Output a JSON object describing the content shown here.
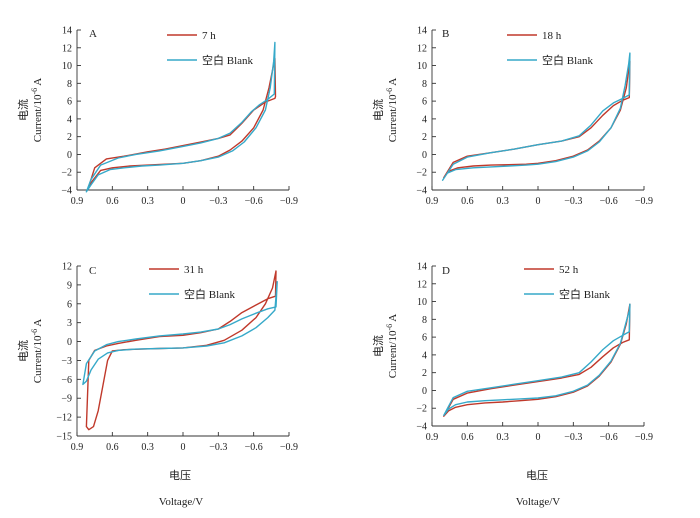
{
  "colors": {
    "sample": "#c0392b",
    "blank": "#36a9c9"
  },
  "x_label_cn": "电压",
  "x_label_en": "Voltage/V",
  "y_label_cn": "电流",
  "y_label_en": "Current/10",
  "y_label_exp": "-6",
  "y_label_unit": " A",
  "chart_data": [
    {
      "type": "line",
      "panel": "A",
      "xlim": [
        0.9,
        -0.9
      ],
      "ylim": [
        -4,
        14
      ],
      "x_ticks": [
        0.9,
        0.6,
        0.3,
        0,
        -0.3,
        -0.6,
        -0.9
      ],
      "x_tick_labels": [
        "0.9",
        "0.6",
        "0.3",
        "0",
        "−0.3",
        "−0.6",
        "−0.9"
      ],
      "y_ticks": [
        -4,
        -2,
        0,
        2,
        4,
        6,
        8,
        10,
        12,
        14
      ],
      "y_tick_labels": [
        "−4",
        "−2",
        "0",
        "2",
        "4",
        "6",
        "8",
        "10",
        "12",
        "14"
      ],
      "series": [
        {
          "name": "7 h",
          "color_key": "sample",
          "x": [
            0.8,
            0.77,
            0.7,
            0.6,
            0.45,
            0.3,
            0.15,
            0,
            -0.15,
            -0.3,
            -0.4,
            -0.5,
            -0.6,
            -0.68,
            -0.73,
            -0.78,
            -0.785,
            -0.78,
            -0.7,
            -0.6,
            -0.5,
            -0.4,
            -0.3,
            -0.15,
            0,
            0.15,
            0.3,
            0.5,
            0.65,
            0.75,
            0.8
          ],
          "y": [
            -3.6,
            -3.0,
            -1.8,
            -1.5,
            -1.3,
            -1.2,
            -1.1,
            -1.0,
            -0.7,
            -0.2,
            0.5,
            1.5,
            3.0,
            5.0,
            7.5,
            10.8,
            6.5,
            6.3,
            5.9,
            5.0,
            3.5,
            2.2,
            1.8,
            1.4,
            1.0,
            0.6,
            0.3,
            -0.2,
            -0.5,
            -1.5,
            -3.6
          ]
        },
        {
          "name": "空白 Blank",
          "color_key": "blank",
          "x": [
            0.82,
            0.78,
            0.72,
            0.62,
            0.5,
            0.35,
            0.2,
            0,
            -0.15,
            -0.3,
            -0.42,
            -0.52,
            -0.62,
            -0.7,
            -0.74,
            -0.77,
            -0.78,
            -0.775,
            -0.72,
            -0.65,
            -0.58,
            -0.5,
            -0.4,
            -0.3,
            -0.15,
            0,
            0.2,
            0.4,
            0.55,
            0.7,
            0.78,
            0.82
          ],
          "y": [
            -4.2,
            -3.4,
            -2.3,
            -1.7,
            -1.5,
            -1.3,
            -1.2,
            -1.0,
            -0.7,
            -0.3,
            0.4,
            1.4,
            3.0,
            5.0,
            7.5,
            10.5,
            12.6,
            6.8,
            6.2,
            5.6,
            4.8,
            3.6,
            2.4,
            1.8,
            1.3,
            0.9,
            0.4,
            0.0,
            -0.4,
            -1.2,
            -2.8,
            -4.2
          ]
        }
      ],
      "legend": [
        "7 h",
        "空白 Blank"
      ]
    },
    {
      "type": "line",
      "panel": "B",
      "xlim": [
        0.9,
        -0.9
      ],
      "ylim": [
        -4,
        14
      ],
      "x_ticks": [
        0.9,
        0.6,
        0.3,
        0,
        -0.3,
        -0.6,
        -0.9
      ],
      "x_tick_labels": [
        "0.9",
        "0.6",
        "0.3",
        "0",
        "−0.3",
        "−0.6",
        "−0.9"
      ],
      "y_ticks": [
        -4,
        -2,
        0,
        2,
        4,
        6,
        8,
        10,
        12,
        14
      ],
      "y_tick_labels": [
        "−4",
        "−2",
        "0",
        "2",
        "4",
        "6",
        "8",
        "10",
        "12",
        "14"
      ],
      "series": [
        {
          "name": "18 h",
          "color_key": "sample",
          "x": [
            0.8,
            0.76,
            0.68,
            0.55,
            0.4,
            0.25,
            0.1,
            0,
            -0.15,
            -0.3,
            -0.42,
            -0.52,
            -0.62,
            -0.7,
            -0.75,
            -0.78,
            -0.775,
            -0.72,
            -0.64,
            -0.55,
            -0.45,
            -0.35,
            -0.2,
            0,
            0.2,
            0.4,
            0.6,
            0.72,
            0.8
          ],
          "y": [
            -2.6,
            -1.9,
            -1.5,
            -1.3,
            -1.2,
            -1.15,
            -1.1,
            -1.0,
            -0.7,
            -0.2,
            0.5,
            1.5,
            3.0,
            5.0,
            7.5,
            10.5,
            6.4,
            6.1,
            5.5,
            4.4,
            3.0,
            2.0,
            1.5,
            1.1,
            0.6,
            0.2,
            -0.2,
            -0.9,
            -2.6
          ]
        },
        {
          "name": "空白 Blank",
          "color_key": "blank",
          "x": [
            0.81,
            0.77,
            0.7,
            0.55,
            0.4,
            0.25,
            0.1,
            0,
            -0.15,
            -0.3,
            -0.42,
            -0.52,
            -0.62,
            -0.7,
            -0.74,
            -0.77,
            -0.78,
            -0.775,
            -0.72,
            -0.64,
            -0.55,
            -0.45,
            -0.35,
            -0.2,
            0,
            0.2,
            0.4,
            0.6,
            0.72,
            0.81
          ],
          "y": [
            -2.9,
            -2.1,
            -1.7,
            -1.5,
            -1.4,
            -1.3,
            -1.2,
            -1.1,
            -0.8,
            -0.3,
            0.4,
            1.4,
            3.0,
            5.2,
            7.8,
            10.2,
            11.4,
            6.7,
            6.3,
            5.8,
            4.9,
            3.3,
            2.1,
            1.5,
            1.1,
            0.6,
            0.2,
            -0.3,
            -1.1,
            -2.9
          ]
        }
      ],
      "legend": [
        "18 h",
        "空白 Blank"
      ]
    },
    {
      "type": "line",
      "panel": "C",
      "xlim": [
        0.9,
        -0.9
      ],
      "ylim": [
        -15,
        12
      ],
      "x_ticks": [
        0.9,
        0.6,
        0.3,
        0,
        -0.3,
        -0.6,
        -0.9
      ],
      "x_tick_labels": [
        "0.9",
        "0.6",
        "0.3",
        "0",
        "−0.3",
        "−0.6",
        "−0.9"
      ],
      "y_ticks": [
        -15,
        -12,
        -9,
        -6,
        -3,
        0,
        3,
        6,
        9,
        12
      ],
      "y_tick_labels": [
        "−15",
        "−12",
        "−9",
        "−6",
        "−3",
        "0",
        "3",
        "6",
        "9",
        "12"
      ],
      "series": [
        {
          "name": "31 h",
          "color_key": "sample",
          "x": [
            0.82,
            0.8,
            0.76,
            0.72,
            0.68,
            0.64,
            0.6,
            0.5,
            0.35,
            0.2,
            0,
            -0.2,
            -0.35,
            -0.5,
            -0.62,
            -0.7,
            -0.76,
            -0.79,
            -0.785,
            -0.72,
            -0.62,
            -0.5,
            -0.4,
            -0.3,
            -0.15,
            0,
            0.2,
            0.4,
            0.55,
            0.65,
            0.75,
            0.8,
            0.82
          ],
          "y": [
            -13.5,
            -14.0,
            -13.5,
            -11.0,
            -7.0,
            -3.0,
            -1.5,
            -1.3,
            -1.2,
            -1.1,
            -1.0,
            -0.6,
            0.2,
            1.8,
            3.8,
            6.0,
            8.5,
            11.2,
            7.2,
            6.8,
            5.8,
            4.6,
            3.2,
            2.0,
            1.4,
            1.0,
            0.8,
            0.2,
            -0.3,
            -0.7,
            -1.4,
            -3.0,
            -13.5
          ]
        },
        {
          "name": "空白 Blank",
          "color_key": "blank",
          "x": [
            0.85,
            0.82,
            0.78,
            0.72,
            0.64,
            0.55,
            0.4,
            0.2,
            0,
            -0.2,
            -0.35,
            -0.5,
            -0.62,
            -0.72,
            -0.78,
            -0.8,
            -0.79,
            -0.72,
            -0.62,
            -0.5,
            -0.4,
            -0.3,
            -0.15,
            0,
            0.2,
            0.4,
            0.55,
            0.65,
            0.75,
            0.82,
            0.85
          ],
          "y": [
            -6.8,
            -6.3,
            -4.5,
            -2.8,
            -1.8,
            -1.4,
            -1.2,
            -1.1,
            -1.0,
            -0.7,
            -0.2,
            0.9,
            2.2,
            3.8,
            5.0,
            9.5,
            5.5,
            5.2,
            4.5,
            3.6,
            2.7,
            2.0,
            1.5,
            1.2,
            0.9,
            0.4,
            0.0,
            -0.5,
            -1.5,
            -3.5,
            -6.8
          ]
        }
      ],
      "legend": [
        "31 h",
        "空白 Blank"
      ]
    },
    {
      "type": "line",
      "panel": "D",
      "xlim": [
        0.9,
        -0.9
      ],
      "ylim": [
        -4,
        14
      ],
      "x_ticks": [
        0.9,
        0.6,
        0.3,
        0,
        -0.3,
        -0.6,
        -0.9
      ],
      "x_tick_labels": [
        "0.9",
        "0.6",
        "0.3",
        "0",
        "−0.3",
        "−0.6",
        "−0.9"
      ],
      "y_ticks": [
        -4,
        -2,
        0,
        2,
        4,
        6,
        8,
        10,
        12,
        14
      ],
      "y_tick_labels": [
        "−4",
        "−2",
        "0",
        "2",
        "4",
        "6",
        "8",
        "10",
        "12",
        "14"
      ],
      "series": [
        {
          "name": "52 h",
          "color_key": "sample",
          "x": [
            0.8,
            0.76,
            0.7,
            0.6,
            0.45,
            0.3,
            0.15,
            0,
            -0.15,
            -0.3,
            -0.42,
            -0.52,
            -0.62,
            -0.7,
            -0.75,
            -0.78,
            -0.775,
            -0.72,
            -0.64,
            -0.55,
            -0.45,
            -0.35,
            -0.2,
            0,
            0.2,
            0.4,
            0.6,
            0.72,
            0.8
          ],
          "y": [
            -2.9,
            -2.3,
            -1.9,
            -1.6,
            -1.4,
            -1.3,
            -1.15,
            -1.0,
            -0.7,
            -0.2,
            0.5,
            1.6,
            3.2,
            5.2,
            7.5,
            9.7,
            5.7,
            5.4,
            4.8,
            3.8,
            2.6,
            1.8,
            1.4,
            1.0,
            0.6,
            0.2,
            -0.3,
            -1.0,
            -2.9
          ]
        },
        {
          "name": "空白 Blank",
          "color_key": "blank",
          "x": [
            0.8,
            0.76,
            0.7,
            0.6,
            0.45,
            0.3,
            0.15,
            0,
            -0.15,
            -0.3,
            -0.42,
            -0.52,
            -0.62,
            -0.7,
            -0.74,
            -0.775,
            -0.78,
            -0.775,
            -0.72,
            -0.64,
            -0.55,
            -0.45,
            -0.35,
            -0.2,
            0,
            0.2,
            0.4,
            0.6,
            0.72,
            0.8
          ],
          "y": [
            -2.8,
            -2.1,
            -1.6,
            -1.3,
            -1.15,
            -1.05,
            -0.95,
            -0.85,
            -0.6,
            -0.1,
            0.6,
            1.7,
            3.3,
            5.3,
            7.3,
            9.0,
            9.7,
            6.6,
            6.2,
            5.6,
            4.6,
            3.2,
            2.0,
            1.5,
            1.1,
            0.7,
            0.3,
            -0.1,
            -0.8,
            -2.8
          ]
        }
      ],
      "legend": [
        "52 h",
        "空白 Blank"
      ]
    }
  ]
}
